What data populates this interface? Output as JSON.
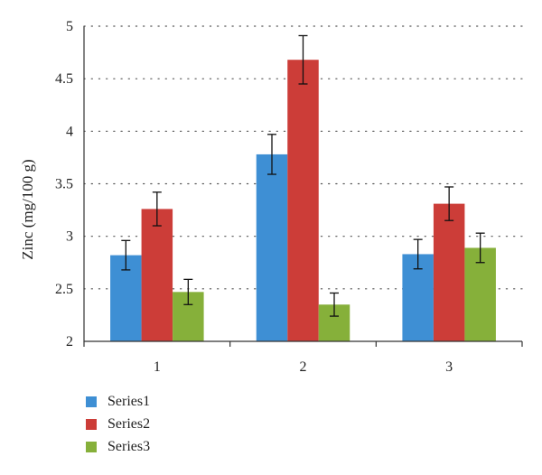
{
  "chart_data": {
    "type": "bar",
    "categories": [
      "1",
      "2",
      "3"
    ],
    "series": [
      {
        "name": "Series1",
        "color": "#3e8fd4",
        "values": [
          2.82,
          3.78,
          2.83
        ],
        "errors": [
          0.14,
          0.19,
          0.14
        ]
      },
      {
        "name": "Series2",
        "color": "#cc3d38",
        "values": [
          3.26,
          4.68,
          3.31
        ],
        "errors": [
          0.16,
          0.23,
          0.16
        ]
      },
      {
        "name": "Series3",
        "color": "#86b03a",
        "values": [
          2.47,
          2.35,
          2.89
        ],
        "errors": [
          0.12,
          0.11,
          0.14
        ]
      }
    ],
    "title": "",
    "xlabel": "",
    "ylabel": "Zinc (mg/100 g)",
    "ylim": [
      2,
      5
    ],
    "yticks": [
      "2",
      "2.5",
      "3",
      "3.5",
      "4",
      "4.5",
      "5"
    ],
    "grid": true,
    "legend_position": "bottom-left"
  }
}
